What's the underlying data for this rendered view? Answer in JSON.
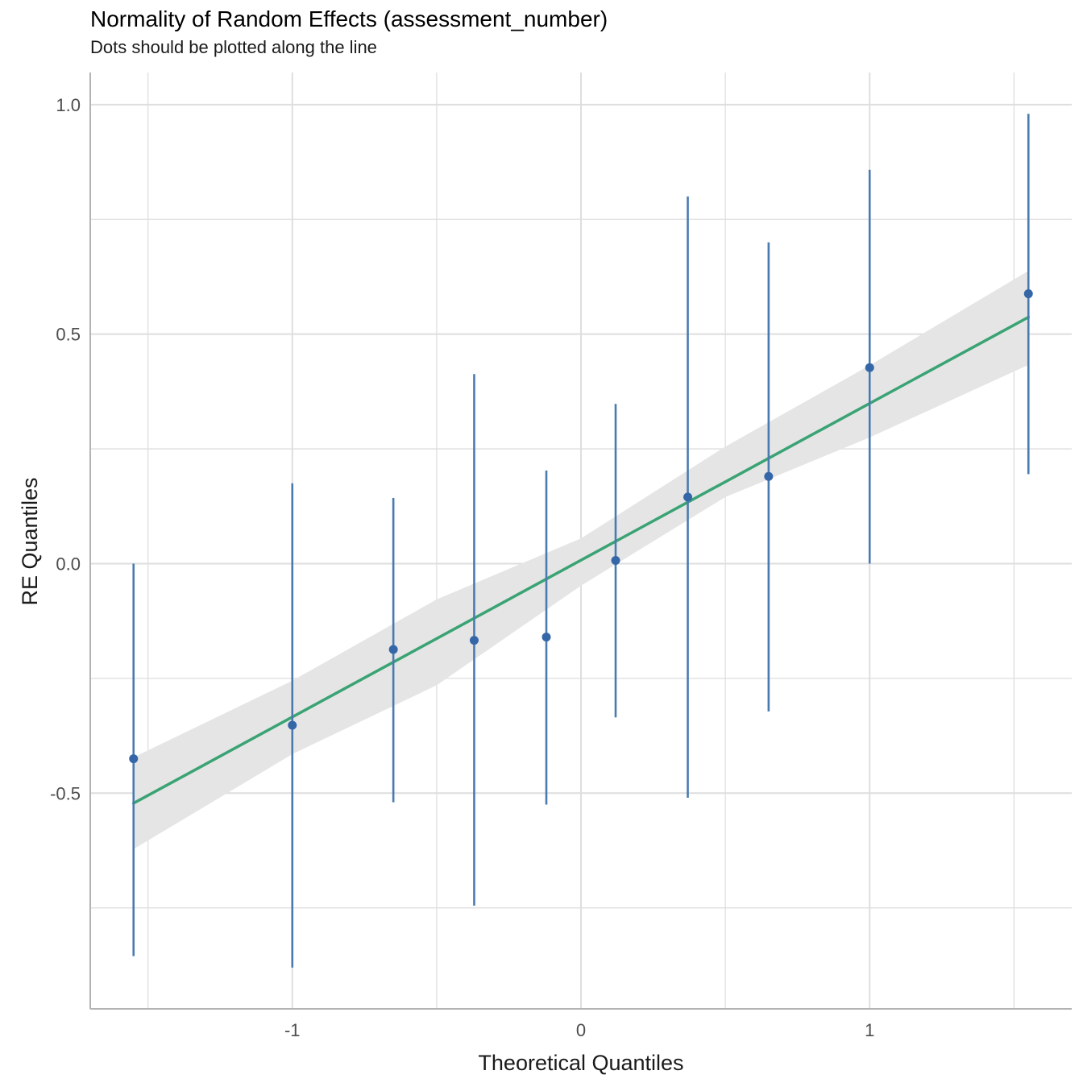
{
  "chart_data": {
    "type": "scatter",
    "title": "Normality of Random Effects (assessment_number)",
    "subtitle": "Dots should be plotted along the line",
    "xlabel": "Theoretical Quantiles",
    "ylabel": "RE Quantiles",
    "xlim": [
      -1.7,
      1.7
    ],
    "ylim": [
      -0.97,
      1.07
    ],
    "x_ticks": [
      -1,
      0,
      1
    ],
    "x_tick_labels": [
      "-1",
      "0",
      "1"
    ],
    "y_ticks": [
      -0.5,
      0.0,
      0.5,
      1.0
    ],
    "y_tick_labels": [
      "-0.5",
      "0.0",
      "0.5",
      "1.0"
    ],
    "grid": true,
    "points": [
      {
        "x": -1.55,
        "y": -0.425,
        "lower": -0.855,
        "upper": 0.0
      },
      {
        "x": -1.0,
        "y": -0.352,
        "lower": -0.88,
        "upper": 0.175
      },
      {
        "x": -0.65,
        "y": -0.187,
        "lower": -0.52,
        "upper": 0.143
      },
      {
        "x": -0.37,
        "y": -0.167,
        "lower": -0.745,
        "upper": 0.413
      },
      {
        "x": -0.12,
        "y": -0.16,
        "lower": -0.525,
        "upper": 0.203
      },
      {
        "x": 0.12,
        "y": 0.007,
        "lower": -0.335,
        "upper": 0.348
      },
      {
        "x": 0.37,
        "y": 0.145,
        "lower": -0.51,
        "upper": 0.8
      },
      {
        "x": 0.65,
        "y": 0.19,
        "lower": -0.322,
        "upper": 0.7
      },
      {
        "x": 1.0,
        "y": 0.427,
        "lower": 0.0,
        "upper": 0.858
      },
      {
        "x": 1.55,
        "y": 0.588,
        "lower": 0.195,
        "upper": 0.98
      }
    ],
    "reference_line": {
      "x": [
        -1.55,
        1.55
      ],
      "y": [
        -0.522,
        0.537
      ]
    },
    "confidence_band": {
      "x": [
        -1.55,
        -1.0,
        -0.5,
        0.0,
        0.5,
        1.0,
        1.55
      ],
      "lower": [
        -0.622,
        -0.415,
        -0.265,
        -0.048,
        0.145,
        0.275,
        0.433
      ],
      "upper": [
        -0.422,
        -0.255,
        -0.078,
        0.055,
        0.255,
        0.432,
        0.638
      ]
    },
    "colors": {
      "points": "#3567a8",
      "errorbars": "#4a7bb0",
      "reference_line": "#3aa374",
      "band": "#e5e5e5",
      "grid": "#dedede",
      "axis": "#b3b3b3"
    }
  }
}
